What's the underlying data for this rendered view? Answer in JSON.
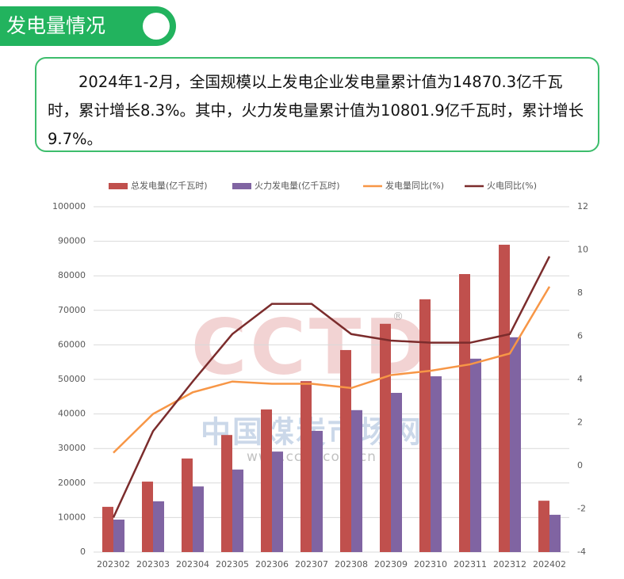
{
  "header": {
    "title": "发电量情况"
  },
  "summary": {
    "text": "2024年1-2月，全国规模以上发电企业发电量累计值为14870.3亿千瓦时，累计增长8.3%。其中，火力发电量累计值为10801.9亿千瓦时，累计增长9.7%。"
  },
  "watermark": {
    "logo": "CCTD",
    "mark": "®",
    "name": "中国煤炭市场网",
    "url": "www.cctd.com.cn"
  },
  "chart_data": {
    "type": "bar-line",
    "categories": [
      "202302",
      "202303",
      "202304",
      "202305",
      "202306",
      "202307",
      "202308",
      "202309",
      "202310",
      "202311",
      "202312",
      "202402"
    ],
    "series": [
      {
        "name": "总发电量(亿千瓦时)",
        "type": "bar",
        "color": "#c0504d",
        "values": [
          13100,
          20400,
          27100,
          33900,
          41300,
          49500,
          58500,
          66100,
          73200,
          80500,
          89000,
          14870.3
        ]
      },
      {
        "name": "火力发电量(亿千瓦时)",
        "type": "bar",
        "color": "#8064a2",
        "values": [
          9400,
          14700,
          19000,
          23900,
          29100,
          35100,
          41100,
          46100,
          50900,
          56000,
          62200,
          10801.9
        ]
      },
      {
        "name": "发电量同比(%)",
        "type": "line",
        "axis": "y2",
        "color": "#f79646",
        "values": [
          0.6,
          2.4,
          3.4,
          3.9,
          3.8,
          3.8,
          3.6,
          4.2,
          4.4,
          4.7,
          5.2,
          8.3
        ]
      },
      {
        "name": "火电同比(%)",
        "type": "line",
        "axis": "y2",
        "color": "#7b2c2c",
        "values": [
          -2.4,
          1.6,
          3.9,
          6.1,
          7.5,
          7.5,
          6.1,
          5.8,
          5.7,
          5.7,
          6.1,
          9.7
        ]
      }
    ],
    "ylim": [
      0,
      100000
    ],
    "yticks": [
      0,
      10000,
      20000,
      30000,
      40000,
      50000,
      60000,
      70000,
      80000,
      90000,
      100000
    ],
    "y2lim": [
      -4,
      12
    ],
    "y2ticks": [
      -4,
      -2,
      0,
      2,
      4,
      6,
      8,
      10,
      12
    ],
    "grid": true,
    "legend": "top"
  }
}
